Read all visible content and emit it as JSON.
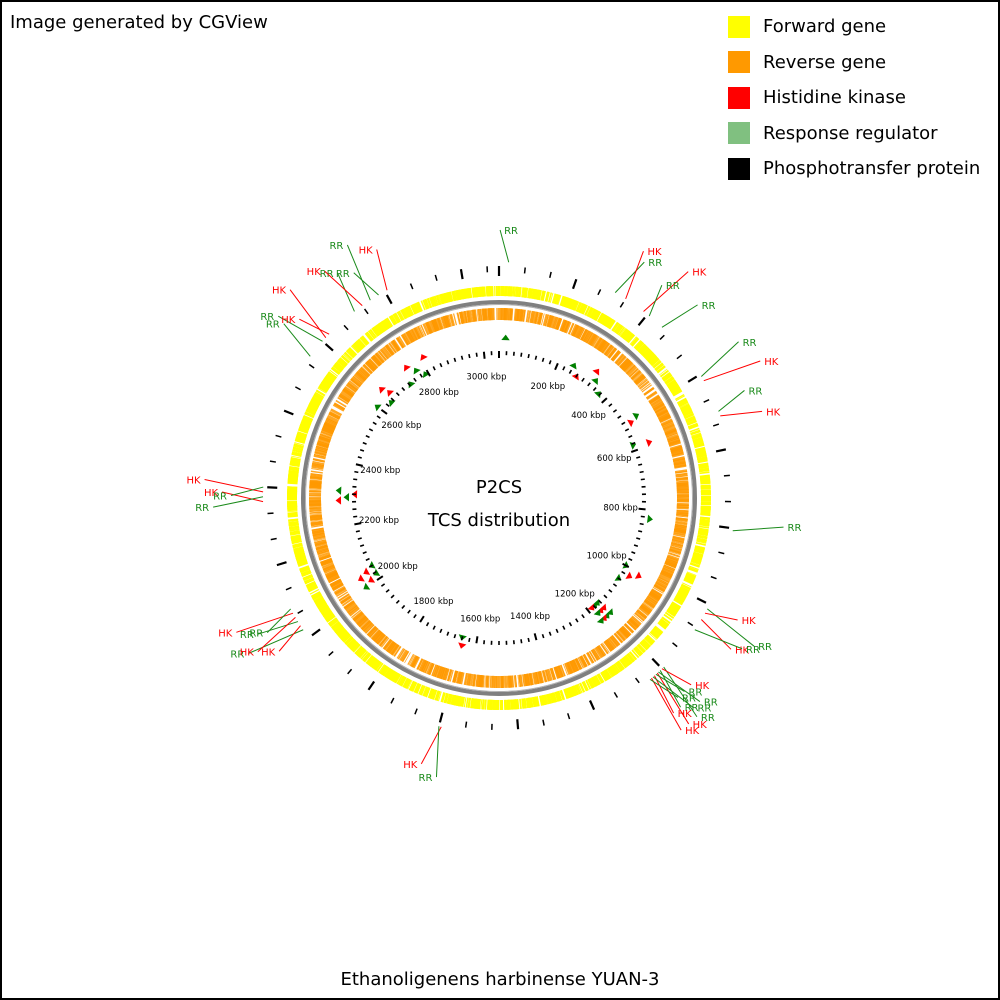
{
  "header": {
    "credit": "Image generated by CGView"
  },
  "legend": [
    {
      "label": "Forward gene",
      "color": "#ffff00"
    },
    {
      "label": "Reverse gene",
      "color": "#ff9900"
    },
    {
      "label": "Histidine kinase",
      "color": "#ff0000"
    },
    {
      "label": "Response regulator",
      "color": "#80c080"
    },
    {
      "label": "Phosphotransfer protein",
      "color": "#000000"
    }
  ],
  "center": {
    "line1": "P2CS",
    "line2": "TCS distribution"
  },
  "footer": {
    "organism": "Ethanoligenens harbinense YUAN-3"
  },
  "map": {
    "genome_length_kbp": 3050,
    "scale_labels": [
      {
        "label": "200 kbp",
        "kbp": 200
      },
      {
        "label": "400 kbp",
        "kbp": 400
      },
      {
        "label": "600 kbp",
        "kbp": 600
      },
      {
        "label": "800 kbp",
        "kbp": 800
      },
      {
        "label": "1000 kbp",
        "kbp": 1000
      },
      {
        "label": "1200 kbp",
        "kbp": 1200
      },
      {
        "label": "1400 kbp",
        "kbp": 1400
      },
      {
        "label": "1600 kbp",
        "kbp": 1600
      },
      {
        "label": "1800 kbp",
        "kbp": 1800
      },
      {
        "label": "2000 kbp",
        "kbp": 2000
      },
      {
        "label": "2200 kbp",
        "kbp": 2200
      },
      {
        "label": "2400 kbp",
        "kbp": 2400
      },
      {
        "label": "2600 kbp",
        "kbp": 2600
      },
      {
        "label": "2800 kbp",
        "kbp": 2800
      },
      {
        "label": "3000 kbp",
        "kbp": 3000
      }
    ],
    "features": [
      {
        "label": "RR",
        "type": "RR",
        "kbp": 20
      },
      {
        "label": "RR",
        "type": "RR",
        "kbp": 250
      },
      {
        "label": "HK",
        "type": "HK",
        "kbp": 275
      },
      {
        "label": "HK",
        "type": "HK",
        "kbp": 320
      },
      {
        "label": "RR",
        "type": "RR",
        "kbp": 335
      },
      {
        "label": "RR",
        "type": "RR",
        "kbp": 370
      },
      {
        "label": "RR",
        "type": "RR",
        "kbp": 500
      },
      {
        "label": "HK",
        "type": "HK",
        "kbp": 510
      },
      {
        "label": "RR",
        "type": "RR",
        "kbp": 580
      },
      {
        "label": "HK",
        "type": "HK",
        "kbp": 590
      },
      {
        "label": "RR",
        "type": "RR",
        "kbp": 830
      },
      {
        "label": "RR",
        "type": "RR",
        "kbp": 1000
      },
      {
        "label": "HK",
        "type": "HK",
        "kbp": 1010
      },
      {
        "label": "HK",
        "type": "HK",
        "kbp": 1025
      },
      {
        "label": "RR",
        "type": "RR",
        "kbp": 1050
      },
      {
        "label": "RR",
        "type": "RR",
        "kbp": 1150
      },
      {
        "label": "HK",
        "type": "HK",
        "kbp": 1155
      },
      {
        "label": "RR",
        "type": "RR",
        "kbp": 1160
      },
      {
        "label": "RR",
        "type": "RR",
        "kbp": 1165
      },
      {
        "label": "HK",
        "type": "HK",
        "kbp": 1168
      },
      {
        "label": "RR",
        "type": "RR",
        "kbp": 1172
      },
      {
        "label": "HK",
        "type": "HK",
        "kbp": 1176
      },
      {
        "label": "RR",
        "type": "RR",
        "kbp": 1180
      },
      {
        "label": "HK",
        "type": "HK",
        "kbp": 1184
      },
      {
        "label": "RR",
        "type": "RR",
        "kbp": 1188
      },
      {
        "label": "HK",
        "type": "HK",
        "kbp": 1645
      },
      {
        "label": "RR",
        "type": "RR",
        "kbp": 1650
      },
      {
        "label": "RR",
        "type": "RR",
        "kbp": 2000
      },
      {
        "label": "HK",
        "type": "HK",
        "kbp": 2010
      },
      {
        "label": "RR",
        "type": "RR",
        "kbp": 2020
      },
      {
        "label": "HK",
        "type": "HK",
        "kbp": 2030
      },
      {
        "label": "HK",
        "type": "HK",
        "kbp": 2040
      },
      {
        "label": "RR",
        "type": "RR",
        "kbp": 2050
      },
      {
        "label": "HK",
        "type": "HK",
        "kbp": 2280
      },
      {
        "label": "RR",
        "type": "RR",
        "kbp": 2290
      },
      {
        "label": "HK",
        "type": "HK",
        "kbp": 2300
      },
      {
        "label": "RR",
        "type": "RR",
        "kbp": 2310
      },
      {
        "label": "RR",
        "type": "RR",
        "kbp": 2600
      },
      {
        "label": "RR",
        "type": "RR",
        "kbp": 2640
      },
      {
        "label": "HK",
        "type": "HK",
        "kbp": 2650
      },
      {
        "label": "HK",
        "type": "HK",
        "kbp": 2660
      },
      {
        "label": "RR",
        "type": "RR",
        "kbp": 2730
      },
      {
        "label": "HK",
        "type": "HK",
        "kbp": 2750
      },
      {
        "label": "RR",
        "type": "RR",
        "kbp": 2770
      },
      {
        "label": "RR",
        "type": "RR",
        "kbp": 2790
      },
      {
        "label": "HK",
        "type": "HK",
        "kbp": 2810
      }
    ],
    "colors": {
      "forward": "#ffff00",
      "reverse": "#ff9900",
      "hk": "#ff0000",
      "rr": "#008000",
      "rr_line": "#1a8a1a",
      "backbone": "#808080",
      "pt": "#000000"
    }
  }
}
